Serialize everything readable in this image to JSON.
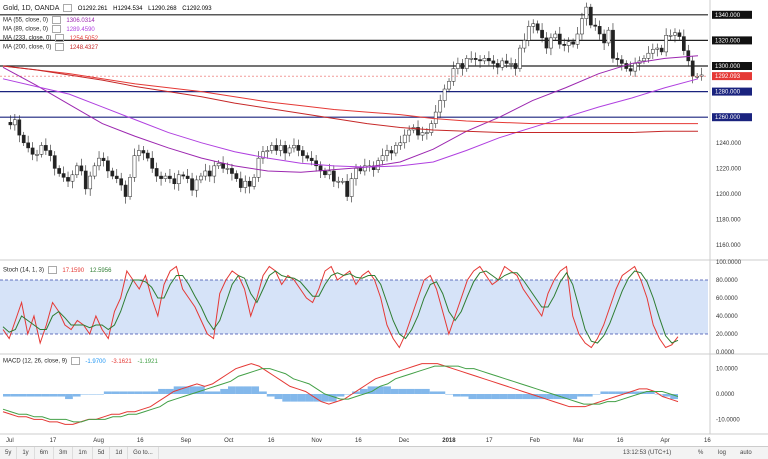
{
  "title": "Gold, 1D, OANDA",
  "ohlc": {
    "o": "O1292.261",
    "h": "H1294.534",
    "l": "L1290.268",
    "c": "C1292.093"
  },
  "indicators": [
    {
      "name": "MA (55, close, 0)",
      "value": "1306.0314",
      "color": "#9c27b0"
    },
    {
      "name": "MA (89, close, 0)",
      "value": "1289.4590",
      "color": "#b040e0"
    },
    {
      "name": "MA (233, close, 0)",
      "value": "1254.5052",
      "color": "#e53935"
    },
    {
      "name": "MA (200, close, 0)",
      "value": "1248.4327",
      "color": "#c62828"
    }
  ],
  "stoch": {
    "name": "Stoch (14, 1, 3)",
    "k": "17.1590",
    "d": "12.5956",
    "k_color": "#e53935",
    "d_color": "#2e7d32"
  },
  "macd": {
    "name": "MACD (12, 26, close, 9)",
    "hist": "-1.9700",
    "macd": "-3.1621",
    "signal": "-1.1921"
  },
  "chart_data": [
    {
      "type": "candlestick",
      "title": "Gold, 1D, OANDA",
      "x_ticks": [
        "Jul",
        "17",
        "Aug",
        "16",
        "Sep",
        "Oct",
        "16",
        "Nov",
        "16",
        "Dec",
        "2018",
        "17",
        "Feb",
        "Mar",
        "16",
        "Apr",
        "16"
      ],
      "y_ticks": [
        1160,
        1180,
        1200,
        1220,
        1240,
        1260,
        1280,
        1300,
        1320,
        1340
      ],
      "ylim": [
        1150,
        1350
      ],
      "horizontal_levels": [
        1340,
        1320,
        1300,
        1280,
        1260
      ],
      "current_price": 1292.093,
      "price_labels": [
        "1340.000",
        "1320.000",
        "1300.000",
        "1292.093",
        "1280.000",
        "1260.000",
        "1240.000",
        "1220.000",
        "1200.000",
        "1180.000",
        "1160.000"
      ],
      "close_path": [
        1256,
        1254,
        1258,
        1246,
        1240,
        1236,
        1231,
        1231,
        1238,
        1234,
        1230,
        1220,
        1216,
        1213,
        1210,
        1215,
        1222,
        1218,
        1204,
        1214,
        1222,
        1228,
        1226,
        1218,
        1214,
        1212,
        1207,
        1198,
        1213,
        1230,
        1234,
        1232,
        1228,
        1220,
        1214,
        1212,
        1214,
        1212,
        1208,
        1215,
        1214,
        1212,
        1203,
        1211,
        1214,
        1218,
        1214,
        1222,
        1224,
        1220,
        1220,
        1216,
        1212,
        1205,
        1210,
        1206,
        1213,
        1228,
        1233,
        1234,
        1238,
        1234,
        1238,
        1232,
        1236,
        1238,
        1234,
        1230,
        1228,
        1226,
        1222,
        1218,
        1215,
        1218,
        1210,
        1210,
        1210,
        1198,
        1212,
        1220,
        1218,
        1222,
        1222,
        1219,
        1226,
        1230,
        1234,
        1232,
        1238,
        1240,
        1246,
        1250,
        1252,
        1246,
        1248,
        1248,
        1255,
        1264,
        1273,
        1282,
        1288,
        1298,
        1302,
        1298,
        1306,
        1306,
        1305,
        1304,
        1306,
        1304,
        1302,
        1299,
        1304,
        1302,
        1302,
        1298,
        1314,
        1320,
        1331,
        1333,
        1328,
        1322,
        1314,
        1322,
        1325,
        1317,
        1316,
        1319,
        1317,
        1325,
        1337,
        1346,
        1332,
        1331,
        1325,
        1318,
        1328,
        1306,
        1305,
        1302,
        1298,
        1296,
        1302,
        1304,
        1306,
        1310,
        1313,
        1314,
        1311,
        1324,
        1324,
        1326,
        1323,
        1312,
        1304,
        1292,
        1292,
        1293
      ],
      "ma_lines": [
        {
          "name": "MA (55, close, 0)",
          "color": "#9c27b0",
          "points": [
            1299,
            1285,
            1270,
            1255,
            1245,
            1236,
            1228,
            1222,
            1218,
            1217,
            1219,
            1221,
            1225,
            1235,
            1249,
            1260,
            1273,
            1283,
            1294,
            1302,
            1306,
            1308
          ]
        },
        {
          "name": "MA (89, close, 0)",
          "color": "#b040e0",
          "points": [
            1290,
            1284,
            1278,
            1268,
            1258,
            1248,
            1240,
            1233,
            1228,
            1224,
            1222,
            1221,
            1222,
            1225,
            1234,
            1244,
            1252,
            1260,
            1268,
            1275,
            1283,
            1290
          ]
        },
        {
          "name": "MA (233, close, 0)",
          "color": "#e53935",
          "points": [
            1300,
            1297,
            1294,
            1290,
            1286,
            1283,
            1280,
            1276,
            1272,
            1269,
            1266,
            1264,
            1262,
            1259,
            1257,
            1256,
            1255,
            1255,
            1255,
            1255,
            1255,
            1255
          ]
        },
        {
          "name": "MA (200, close, 0)",
          "color": "#c62828",
          "points": [
            1300,
            1297,
            1293,
            1289,
            1284,
            1280,
            1276,
            1271,
            1267,
            1263,
            1259,
            1255,
            1252,
            1250,
            1249,
            1248,
            1248,
            1248,
            1248,
            1248,
            1249,
            1249
          ]
        }
      ]
    },
    {
      "type": "line",
      "title": "Stoch (14, 1, 3)",
      "y_ticks": [
        0,
        20,
        40,
        60,
        80,
        100
      ],
      "ylim": [
        0,
        100
      ],
      "band": [
        20,
        80
      ],
      "series": [
        {
          "name": "K",
          "color": "#e53935",
          "values": [
            25,
            15,
            35,
            55,
            20,
            40,
            10,
            30,
            55,
            45,
            30,
            25,
            35,
            30,
            20,
            40,
            25,
            15,
            45,
            60,
            90,
            80,
            70,
            85,
            60,
            40,
            75,
            90,
            95,
            70,
            60,
            50,
            35,
            20,
            15,
            65,
            80,
            90,
            85,
            70,
            40,
            60,
            85,
            95,
            90,
            75,
            85,
            80,
            70,
            60,
            55,
            70,
            90,
            95,
            80,
            85,
            90,
            75,
            85,
            90,
            80,
            60,
            30,
            15,
            5,
            20,
            40,
            60,
            80,
            85,
            70,
            45,
            20,
            40,
            60,
            80,
            90,
            95,
            85,
            75,
            80,
            95,
            90,
            85,
            70,
            60,
            50,
            40,
            65,
            80,
            90,
            95,
            40,
            20,
            10,
            5,
            15,
            30,
            50,
            70,
            85,
            90,
            95,
            80,
            60,
            30,
            15,
            5,
            8,
            17
          ]
        },
        {
          "name": "D",
          "color": "#2e7d32",
          "values": [
            28,
            22,
            25,
            40,
            35,
            30,
            25,
            25,
            40,
            45,
            38,
            30,
            30,
            30,
            27,
            30,
            30,
            25,
            30,
            45,
            65,
            80,
            80,
            78,
            72,
            60,
            60,
            75,
            85,
            85,
            75,
            62,
            50,
            35,
            25,
            35,
            55,
            75,
            85,
            82,
            65,
            55,
            70,
            85,
            90,
            85,
            83,
            82,
            78,
            70,
            62,
            62,
            75,
            85,
            88,
            85,
            87,
            83,
            82,
            85,
            85,
            75,
            55,
            35,
            20,
            15,
            25,
            40,
            60,
            75,
            78,
            65,
            45,
            35,
            45,
            62,
            78,
            88,
            90,
            85,
            80,
            85,
            88,
            88,
            80,
            70,
            60,
            50,
            50,
            62,
            78,
            88,
            75,
            50,
            25,
            12,
            10,
            18,
            32,
            50,
            68,
            82,
            90,
            88,
            78,
            60,
            38,
            18,
            10,
            13
          ]
        }
      ]
    },
    {
      "type": "line",
      "title": "MACD (12, 26, close, 9)",
      "y_ticks": [
        -10,
        0,
        10
      ],
      "ylim": [
        -15,
        15
      ],
      "series": [
        {
          "name": "MACD",
          "color": "#e53935",
          "values": [
            -7,
            -8,
            -9,
            -9,
            -10,
            -10,
            -11,
            -11,
            -12,
            -12,
            -11,
            -10,
            -10,
            -9,
            -8,
            -8,
            -7,
            -7,
            -6,
            -5,
            -3,
            -1,
            1,
            2,
            3,
            4,
            3,
            4,
            6,
            8,
            10,
            11,
            12,
            11,
            9,
            7,
            5,
            3,
            2,
            1,
            -1,
            -3,
            -4,
            -3,
            -2,
            0,
            2,
            4,
            6,
            7,
            8,
            9,
            10,
            11,
            12,
            12,
            12,
            11,
            10,
            9,
            8,
            7,
            6,
            5,
            4,
            3,
            2,
            1,
            0,
            -1,
            -2,
            -3,
            -4,
            -5,
            -5,
            -5,
            -4,
            -3,
            -2,
            -1,
            0,
            1,
            2,
            2,
            1,
            -1,
            -2,
            -3
          ]
        },
        {
          "name": "Signal",
          "color": "#43a047",
          "values": [
            -6,
            -7,
            -8,
            -8,
            -9,
            -9,
            -10,
            -10,
            -10,
            -11,
            -11,
            -10,
            -10,
            -10,
            -9,
            -9,
            -8,
            -8,
            -7,
            -6,
            -5,
            -3,
            -2,
            -1,
            0,
            1,
            2,
            3,
            4,
            5,
            7,
            8,
            9,
            10,
            10,
            9,
            8,
            6,
            5,
            4,
            2,
            0,
            -1,
            -2,
            -2,
            -1,
            0,
            1,
            3,
            4,
            6,
            7,
            8,
            9,
            10,
            11,
            11,
            11,
            11,
            10,
            10,
            9,
            8,
            7,
            6,
            5,
            4,
            3,
            2,
            1,
            0,
            -1,
            -2,
            -3,
            -4,
            -4,
            -4,
            -3,
            -3,
            -2,
            -1,
            0,
            1,
            1,
            1,
            0,
            -1
          ]
        },
        {
          "name": "Histogram",
          "color": "#64a6e6",
          "values": [
            -1,
            -1,
            -1,
            -1,
            -1,
            -1,
            -1,
            -1,
            -2,
            -1,
            0,
            0,
            0,
            1,
            1,
            1,
            1,
            1,
            1,
            1,
            2,
            2,
            3,
            3,
            3,
            3,
            1,
            1,
            2,
            3,
            3,
            3,
            3,
            1,
            -1,
            -2,
            -3,
            -3,
            -3,
            -3,
            -3,
            -3,
            -3,
            -1,
            0,
            1,
            2,
            3,
            3,
            3,
            2,
            2,
            2,
            2,
            2,
            1,
            1,
            0,
            -1,
            -1,
            -2,
            -2,
            -2,
            -2,
            -2,
            -2,
            -2,
            -2,
            -2,
            -2,
            -2,
            -2,
            -2,
            -2,
            -1,
            -1,
            0,
            1,
            1,
            1,
            1,
            1,
            1,
            1,
            0,
            -1,
            -2
          ]
        }
      ]
    }
  ],
  "bottom_bar": {
    "timeframes": [
      "5y",
      "1y",
      "6m",
      "3m",
      "1m",
      "5d",
      "1d",
      "Go to..."
    ],
    "time": "13:12:53 (UTC+1)",
    "percent": "%",
    "log": "log",
    "auto": "auto"
  }
}
